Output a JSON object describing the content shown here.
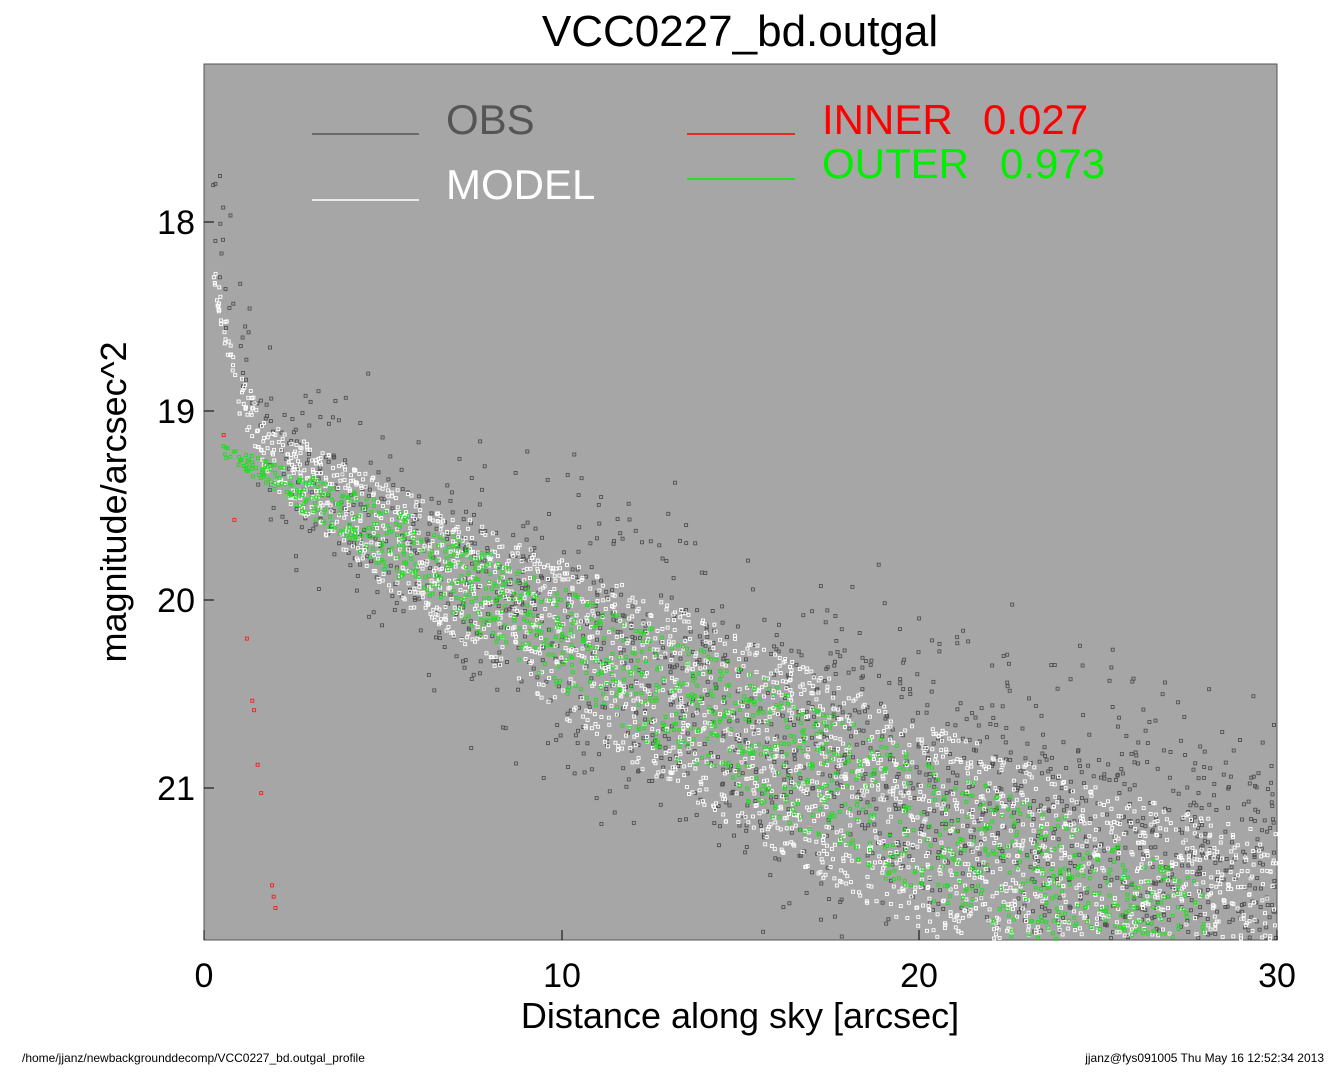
{
  "chart_data": {
    "type": "scatter",
    "title": "VCC0227_bd.outgal",
    "xlabel": "Distance along sky [arcsec]",
    "ylabel": "magnitude/arcsec^2",
    "xlim": [
      0,
      30
    ],
    "ylim": [
      21.8,
      17.15
    ],
    "y_inverted": true,
    "xticks": [
      0,
      10,
      20,
      30
    ],
    "yticks": [
      18,
      19,
      20,
      21
    ],
    "grid": false,
    "legend": {
      "position": "top",
      "entries": [
        {
          "label": "OBS",
          "color": "#555555"
        },
        {
          "label": "MODEL",
          "color": "#ffffff"
        },
        {
          "label": "INNER",
          "value": "0.027",
          "color": "#ff0000"
        },
        {
          "label": "OUTER",
          "value": "0.973",
          "color": "#00ee00"
        }
      ]
    },
    "colors": {
      "background": "#a6a6a6",
      "obs": "#505050",
      "model": "#ffffff",
      "inner": "#ff1a1a",
      "outer": "#22dd22"
    },
    "series": [
      {
        "name": "INNER",
        "x": [
          0.55,
          0.85,
          1.2,
          1.35,
          1.4,
          1.5,
          1.6,
          1.9,
          1.95,
          2.0
        ],
        "y": [
          19.12,
          19.57,
          20.2,
          20.53,
          20.58,
          20.87,
          21.02,
          21.51,
          21.57,
          21.63
        ]
      },
      {
        "name": "OUTER",
        "profile": {
          "x": [
            0.5,
            5,
            10,
            15,
            20,
            25,
            28
          ],
          "y": [
            19.2,
            19.65,
            20.2,
            20.7,
            21.2,
            21.6,
            21.8
          ]
        },
        "spread": {
          "x": [
            0.5,
            5,
            10,
            15,
            20,
            25,
            28
          ],
          "y": [
            0.05,
            0.35,
            0.55,
            0.7,
            0.75,
            0.75,
            0.6
          ]
        }
      },
      {
        "name": "MODEL",
        "profile": {
          "x": [
            0.25,
            0.5,
            1,
            2,
            5,
            10,
            15,
            20,
            25,
            30
          ],
          "y": [
            18.2,
            18.5,
            18.9,
            19.25,
            19.65,
            20.2,
            20.7,
            21.2,
            21.55,
            21.8
          ]
        },
        "spread": {
          "x": [
            0.25,
            2,
            5,
            10,
            15,
            20,
            25,
            30
          ],
          "y": [
            0.1,
            0.25,
            0.4,
            0.6,
            0.75,
            0.8,
            0.8,
            0.8
          ]
        }
      },
      {
        "name": "OBS",
        "profile": {
          "x": [
            0.5,
            1,
            2,
            5,
            10,
            15,
            20,
            25,
            30
          ],
          "y": [
            18.0,
            18.6,
            19.2,
            19.6,
            20.15,
            20.6,
            21.0,
            21.3,
            21.5
          ]
        },
        "spread": {
          "x": [
            0.5,
            2,
            5,
            10,
            15,
            20,
            25,
            30
          ],
          "y": [
            0.3,
            0.4,
            0.5,
            0.7,
            0.75,
            0.8,
            0.8,
            0.8
          ]
        }
      }
    ]
  },
  "footer": {
    "left": "/home/jjanz/newbackgrounddecomp/VCC0227_bd.outgal_profile",
    "right": "jjanz@fys091005  Thu May 16 12:52:34 2013"
  }
}
